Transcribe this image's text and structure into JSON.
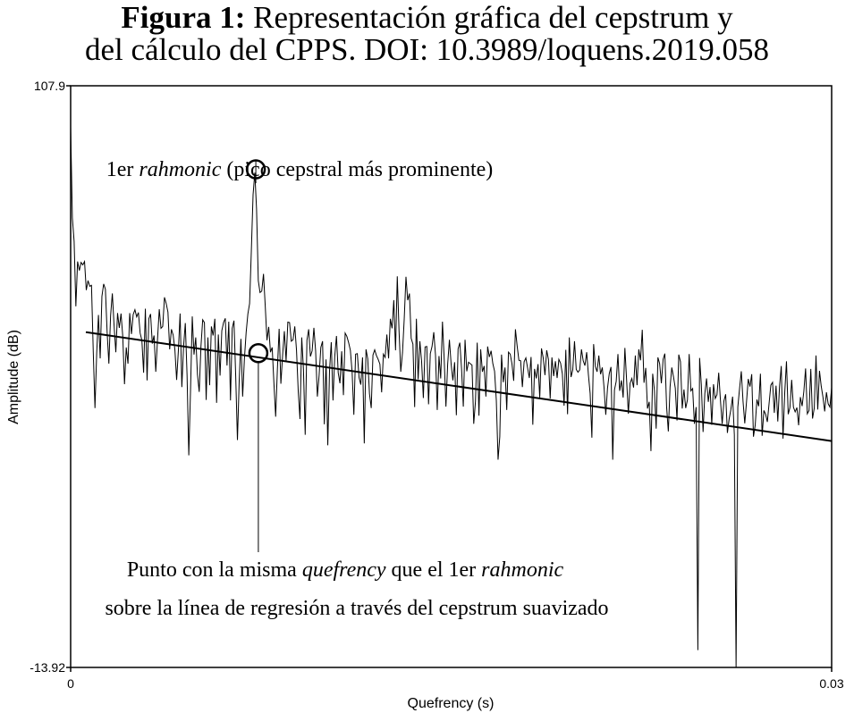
{
  "figure": {
    "title_bold": "Figura 1:",
    "title_rest": " Representación gráfica del cepstrum y",
    "title_line2": "del cálculo del CPPS. DOI: 10.3989/loquens.2019.058"
  },
  "chart_data": {
    "type": "line",
    "xlabel": "Quefrency (s)",
    "ylabel": "Amplitude (dB)",
    "xlim": [
      0,
      0.03
    ],
    "ylim": [
      -13.92,
      107.9
    ],
    "x_ticks": [
      "0",
      "0.03"
    ],
    "y_ticks": [
      "107.9",
      "-13.92"
    ],
    "series": [
      {
        "role": "cepstrum",
        "x_start": 0,
        "x_end": 0.03,
        "values": [
          99.2,
          80.2,
          75.3,
          61.7,
          71.1,
          69.2,
          70.9,
          70.4,
          71.1,
          65.1,
          67.1,
          65.9,
          66.1,
          52.4,
          40.4,
          51.9,
          59.9,
          50.8,
          63.8,
          66.4,
          65.3,
          56.3,
          49.7,
          59.8,
          64.4,
          57.7,
          52.1,
          60.3,
          57.2,
          60.2,
          55.4,
          45.4,
          53.1,
          49.7,
          60.3,
          55.9,
          60.0,
          61.0,
          59.5,
          60.4,
          56.1,
          54.6,
          47.8,
          61.2,
          46.2,
          59.1,
          60.1,
          53.9,
          55.6,
          48.0,
          54.8,
          61.1,
          57.1,
          57.5,
          63.6,
          62.3,
          60.5,
          52.7,
          56.9,
          55.7,
          52.6,
          46.3,
          52.4,
          60.2,
          44.8,
          53.3,
          58.2,
          47.3,
          30.5,
          44.1,
          59.6,
          51.6,
          55.2,
          47.4,
          43.8,
          53.3,
          58.9,
          58.3,
          42.1,
          55.2,
          45.2,
          57.5,
          55.6,
          59.1,
          41.5,
          55.8,
          47.2,
          56.6,
          58.3,
          59.2,
          49.3,
          58.5,
          42.0,
          57.1,
          58.7,
          47.1,
          33.7,
          45.9,
          54.9,
          42.8,
          50.6,
          56.2,
          60.1,
          62.3,
          73.3,
          85.1,
          89.7,
          82.1,
          67.1,
          64.6,
          64.9,
          68.5,
          61.8,
          54.6,
          57.4,
          52.1,
          53.1,
          45.6,
          38.6,
          48.6,
          57.0,
          45.5,
          51.5,
          56.5,
          50.3,
          58.4,
          58.3,
          54.4,
          54.7,
          57.5,
          52.5,
          43.9,
          38.1,
          55.2,
          48.5,
          34.8,
          54.6,
          56.9,
          51.2,
          52.4,
          57.2,
          52.4,
          42.8,
          47.2,
          53.1,
          54.4,
          37.0,
          50.6,
          32.6,
          48.2,
          54.2,
          42.0,
          51.2,
          55.5,
          47.8,
          45.6,
          52.3,
          43.1,
          56.1,
          55.4,
          54.1,
          52.5,
          48.0,
          39.0,
          51.7,
          51.8,
          46.8,
          45.3,
          51.0,
          33.0,
          52.7,
          50.7,
          43.4,
          40.4,
          51.5,
          52.6,
          51.4,
          50.6,
          49.6,
          43.7,
          51.7,
          51.0,
          55.8,
          50.8,
          59.1,
          57.1,
          63.0,
          52.5,
          68.0,
          56.7,
          48.0,
          52.0,
          59.1,
          67.9,
          63.0,
          64.4,
          55.0,
          53.8,
          40.6,
          59.1,
          46.4,
          54.4,
          50.2,
          42.5,
          53.2,
          53.3,
          41.2,
          51.8,
          53.3,
          56.3,
          51.5,
          40.0,
          51.3,
          46.6,
          58.5,
          50.7,
          40.7,
          49.6,
          54.7,
          49.6,
          46.2,
          50.0,
          38.9,
          52.8,
          54.1,
          48.6,
          40.7,
          54.7,
          48.1,
          50.0,
          49.7,
          49.4,
          37.1,
          41.8,
          54.1,
          38.8,
          52.7,
          48.0,
          49.2,
          42.8,
          53.3,
          51.1,
          52.4,
          49.7,
          48.1,
          42.0,
          29.6,
          34.4,
          51.6,
          45.8,
          48.9,
          40.0,
          52.1,
          51.7,
          49.7,
          46.1,
          56.9,
          53.4,
          50.4,
          50.3,
          44.8,
          50.1,
          50.9,
          48.8,
          46.7,
          51.1,
          36.9,
          48.6,
          46.6,
          49.6,
          42.6,
          52.9,
          50.9,
          47.3,
          52.5,
          50.6,
          42.4,
          51.0,
          47.1,
          50.2,
          46.7,
          50.6,
          49.8,
          47.6,
          40.9,
          52.6,
          39.1,
          55.2,
          46.9,
          48.4,
          54.4,
          48.5,
          47.9,
          48.4,
          52.7,
          50.3,
          49.3,
          52.1,
          47.4,
          43.5,
          34.2,
          53.8,
          49.1,
          48.0,
          51.4,
          47.5,
          48.9,
          44.7,
          39.0,
          44.6,
          47.6,
          49.0,
          29.6,
          44.2,
          46.0,
          51.7,
          44.0,
          46.2,
          42.6,
          53.0,
          46.2,
          39.2,
          45.6,
          46.6,
          44.7,
          51.4,
          45.2,
          52.7,
          50.4,
          56.8,
          45.7,
          48.8,
          40.3,
          41.7,
          31.4,
          47.6,
          44.1,
          36.1,
          51.0,
          49.7,
          45.6,
          50.6,
          51.8,
          40.7,
          35.5,
          44.8,
          48.9,
          46.9,
          44.6,
          37.8,
          51.6,
          50.1,
          40.3,
          44.3,
          40.4,
          42.1,
          51.7,
          44.0,
          44.5,
          37.1,
          40.6,
          -10.3,
          50.9,
          45.3,
          35.4,
          43.4,
          46.6,
          41.7,
          44.8,
          36.9,
          45.4,
          42.4,
          43.2,
          47.8,
          42.0,
          37.1,
          41.9,
          43.3,
          35.2,
          38.1,
          40.1,
          42.8,
          34.8,
          -13.9,
          40.6,
          44.5,
          48.1,
          41.8,
          37.2,
          41.7,
          46.5,
          44.9,
          47.5,
          34.4,
          36.8,
          42.2,
          40.8,
          47.6,
          34.6,
          39.9,
          39.1,
          37.5,
          41.4,
          45.2,
          45.8,
          39.4,
          45.1,
          37.6,
          44.9,
          49.2,
          34.0,
          43.6,
          50.2,
          39.1,
          40.5,
          46.3,
          40.6,
          39.6,
          40.5,
          36.8,
          42.7,
          40.8,
          43.9,
          48.7,
          39.2,
          39.9,
          48.6,
          38.2,
          40.4,
          51.4,
          40.1,
          48.2,
          45.0,
          42.7,
          39.7,
          43.7,
          41.3,
          40.6,
          44.7
        ]
      },
      {
        "role": "regression line",
        "x": [
          0.0006,
          0.03
        ],
        "y": [
          56.3,
          33.5
        ]
      }
    ],
    "annotations": [
      {
        "target": "1er rahmonic peak",
        "at": [
          0.0073,
          90.4
        ],
        "line1_pre": "1er ",
        "line1_italic": "rahmonic",
        "line1_post": " (pico cepstral más prominente)"
      },
      {
        "target": "regression point at same quefrency",
        "at": [
          0.0074,
          51.9
        ],
        "line1_pre": "Punto con la misma ",
        "line1_italic1": "quefrency",
        "line1_mid": " que el 1er ",
        "line1_italic2": "rahmonic",
        "line2": "sobre la línea de regresión a través del cepstrum suavizado"
      }
    ]
  }
}
